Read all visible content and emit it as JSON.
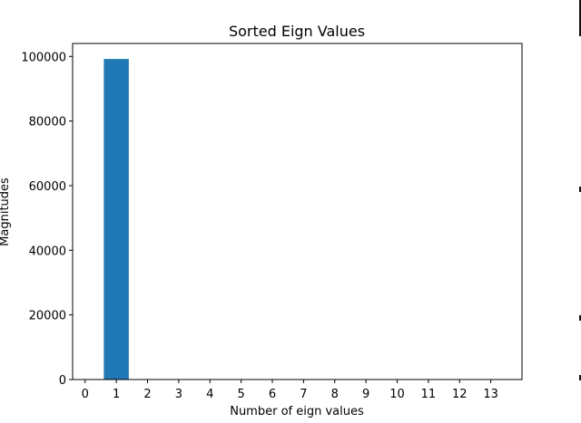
{
  "chart_data": {
    "type": "bar",
    "title": "Sorted Eign Values",
    "xlabel": "Number of eign values",
    "ylabel": "Magnitudes",
    "x_ticks": [
      "0",
      "1",
      "2",
      "3",
      "4",
      "5",
      "6",
      "7",
      "8",
      "9",
      "10",
      "11",
      "12",
      "13"
    ],
    "y_ticks": [
      "0",
      "20000",
      "40000",
      "60000",
      "80000",
      "100000"
    ],
    "xlim": [
      -0.4,
      14.0
    ],
    "ylim": [
      0,
      104000
    ],
    "categories": [
      1,
      2,
      3,
      4,
      5,
      6,
      7,
      8,
      9,
      10,
      11,
      12,
      13
    ],
    "values": [
      99200,
      0,
      0,
      0,
      0,
      0,
      0,
      0,
      0,
      0,
      0,
      0,
      0
    ],
    "bar_width": 0.8,
    "bar_color": "#1f77b4",
    "grid": false,
    "legend": "none"
  }
}
